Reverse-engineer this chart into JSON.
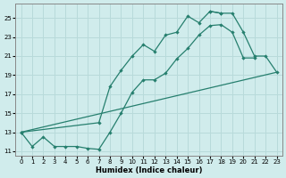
{
  "title": "",
  "xlabel": "Humidex (Indice chaleur)",
  "ylabel": "",
  "bg_color": "#d0ecec",
  "grid_color": "#b8dada",
  "line_color": "#267f6e",
  "xlim": [
    -0.5,
    23.5
  ],
  "ylim": [
    10.5,
    26.5
  ],
  "xticks": [
    0,
    1,
    2,
    3,
    4,
    5,
    6,
    7,
    8,
    9,
    10,
    11,
    12,
    13,
    14,
    15,
    16,
    17,
    18,
    19,
    20,
    21,
    22,
    23
  ],
  "yticks": [
    11,
    13,
    15,
    17,
    19,
    21,
    23,
    25
  ],
  "line1_x": [
    0,
    1,
    2,
    3,
    4,
    5,
    6,
    7,
    8,
    9,
    10,
    11,
    12,
    13,
    14,
    15,
    16,
    17,
    18,
    19,
    20,
    21
  ],
  "line1_y": [
    13,
    11.5,
    12.5,
    11.5,
    11.5,
    11.5,
    11.3,
    11.2,
    13.0,
    15.0,
    17.2,
    18.5,
    18.5,
    19.2,
    20.7,
    21.8,
    23.2,
    24.2,
    24.3,
    23.5,
    20.8,
    20.8
  ],
  "line2_x": [
    0,
    7,
    8,
    9,
    10,
    11,
    12,
    13,
    14,
    15,
    16,
    17,
    18
  ],
  "line2_y": [
    13,
    14.0,
    17.8,
    19.5,
    21.0,
    22.2,
    21.5,
    23.2,
    23.5,
    25.2,
    24.5,
    25.7,
    25.5
  ],
  "line3_x": [
    0,
    23
  ],
  "line3_y": [
    13,
    19.3
  ],
  "line4_x": [
    17,
    18,
    19,
    20,
    21,
    22,
    23
  ],
  "line4_y": [
    25.7,
    25.5,
    25.5,
    23.5,
    21.0,
    21.0,
    19.3
  ]
}
